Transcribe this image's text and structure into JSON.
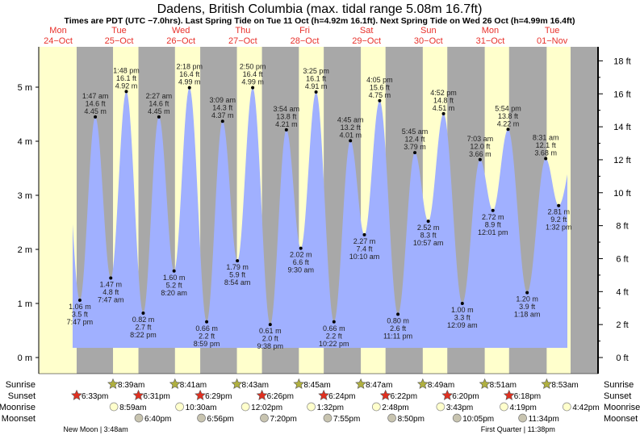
{
  "colors": {
    "day": "#ffffcc",
    "night": "#a8a8a8",
    "water": "#a0b0ff",
    "day_label": "#e8302a",
    "sunrise_star": "#b0b040",
    "sunset_star": "#e03020",
    "moonrise": "#ffffcc",
    "moonset": "#c8c4b0"
  },
  "chart_data": {
    "type": "area",
    "title": "Dadens, British Columbia (max. tidal range 5.08m 16.7ft)",
    "subtitle": "Times are PDT (UTC −7.0hrs). Last Spring Tide on Tue 11 Oct (h=4.92m 16.1ft). Next Spring Tide on Wed 26 Oct (h=4.99m 16.4ft)",
    "days": [
      {
        "name": "Mon",
        "date": "24−Oct"
      },
      {
        "name": "Tue",
        "date": "25−Oct"
      },
      {
        "name": "Wed",
        "date": "26−Oct"
      },
      {
        "name": "Thu",
        "date": "27−Oct"
      },
      {
        "name": "Fri",
        "date": "28−Oct"
      },
      {
        "name": "Sat",
        "date": "29−Oct"
      },
      {
        "name": "Sun",
        "date": "30−Oct"
      },
      {
        "name": "Mon",
        "date": "31−Oct"
      },
      {
        "name": "Tue",
        "date": "01−Nov"
      }
    ],
    "y_left": {
      "unit": "m",
      "range": [
        0,
        5
      ],
      "ticks": [
        "0 m",
        "1 m",
        "2 m",
        "3 m",
        "4 m",
        "5 m"
      ]
    },
    "y_right": {
      "unit": "ft",
      "ticks": [
        "0 ft",
        "2 ft",
        "4 ft",
        "6 ft",
        "8 ft",
        "10 ft",
        "12 ft",
        "14 ft",
        "16 ft",
        "18 ft"
      ]
    },
    "tides": [
      {
        "day": 0,
        "type": "low",
        "time": "7:47 pm",
        "m": "1.06 m",
        "ft": "3.5 ft",
        "h": 1.06
      },
      {
        "day": 1,
        "type": "high",
        "time": "1:47 am",
        "m": "4.45 m",
        "ft": "14.6 ft",
        "h": 4.45
      },
      {
        "day": 1,
        "type": "low",
        "time": "7:47 am",
        "m": "1.47 m",
        "ft": "4.8 ft",
        "h": 1.47
      },
      {
        "day": 1,
        "type": "high",
        "time": "1:48 pm",
        "m": "4.92 m",
        "ft": "16.1 ft",
        "h": 4.92
      },
      {
        "day": 1,
        "type": "low",
        "time": "8:22 pm",
        "m": "0.82 m",
        "ft": "2.7 ft",
        "h": 0.82
      },
      {
        "day": 2,
        "type": "high",
        "time": "2:27 am",
        "m": "4.45 m",
        "ft": "14.6 ft",
        "h": 4.45
      },
      {
        "day": 2,
        "type": "low",
        "time": "8:20 am",
        "m": "1.60 m",
        "ft": "5.2 ft",
        "h": 1.6
      },
      {
        "day": 2,
        "type": "high",
        "time": "2:18 pm",
        "m": "4.99 m",
        "ft": "16.4 ft",
        "h": 4.99
      },
      {
        "day": 2,
        "type": "low",
        "time": "8:59 pm",
        "m": "0.66 m",
        "ft": "2.2 ft",
        "h": 0.66
      },
      {
        "day": 3,
        "type": "high",
        "time": "3:09 am",
        "m": "4.37 m",
        "ft": "14.3 ft",
        "h": 4.37
      },
      {
        "day": 3,
        "type": "low",
        "time": "8:54 am",
        "m": "1.79 m",
        "ft": "5.9 ft",
        "h": 1.79
      },
      {
        "day": 3,
        "type": "high",
        "time": "2:50 pm",
        "m": "4.99 m",
        "ft": "16.4 ft",
        "h": 4.99
      },
      {
        "day": 3,
        "type": "low",
        "time": "9:38 pm",
        "m": "0.61 m",
        "ft": "2.0 ft",
        "h": 0.61
      },
      {
        "day": 4,
        "type": "high",
        "time": "3:54 am",
        "m": "4.21 m",
        "ft": "13.8 ft",
        "h": 4.21
      },
      {
        "day": 4,
        "type": "low",
        "time": "9:30 am",
        "m": "2.02 m",
        "ft": "6.6 ft",
        "h": 2.02
      },
      {
        "day": 4,
        "type": "high",
        "time": "3:25 pm",
        "m": "4.91 m",
        "ft": "16.1 ft",
        "h": 4.91
      },
      {
        "day": 4,
        "type": "low",
        "time": "10:22 pm",
        "m": "0.66 m",
        "ft": "2.2 ft",
        "h": 0.66
      },
      {
        "day": 5,
        "type": "high",
        "time": "4:45 am",
        "m": "4.01 m",
        "ft": "13.2 ft",
        "h": 4.01
      },
      {
        "day": 5,
        "type": "low",
        "time": "10:10 am",
        "m": "2.27 m",
        "ft": "7.4 ft",
        "h": 2.27
      },
      {
        "day": 5,
        "type": "high",
        "time": "4:05 pm",
        "m": "4.75 m",
        "ft": "15.6 ft",
        "h": 4.75
      },
      {
        "day": 5,
        "type": "low",
        "time": "11:11 pm",
        "m": "0.80 m",
        "ft": "2.6 ft",
        "h": 0.8
      },
      {
        "day": 6,
        "type": "high",
        "time": "5:45 am",
        "m": "3.79 m",
        "ft": "12.4 ft",
        "h": 3.79
      },
      {
        "day": 6,
        "type": "low",
        "time": "10:57 am",
        "m": "2.52 m",
        "ft": "8.3 ft",
        "h": 2.52
      },
      {
        "day": 6,
        "type": "high",
        "time": "4:52 pm",
        "m": "4.51 m",
        "ft": "14.8 ft",
        "h": 4.51
      },
      {
        "day": 7,
        "type": "low",
        "time": "12:09 am",
        "m": "1.00 m",
        "ft": "3.3 ft",
        "h": 1.0
      },
      {
        "day": 7,
        "type": "high",
        "time": "7:03 am",
        "m": "3.66 m",
        "ft": "12.0 ft",
        "h": 3.66
      },
      {
        "day": 7,
        "type": "low",
        "time": "12:01 pm",
        "m": "2.72 m",
        "ft": "8.9 ft",
        "h": 2.72
      },
      {
        "day": 7,
        "type": "high",
        "time": "5:54 pm",
        "m": "4.22 m",
        "ft": "13.8 ft",
        "h": 4.22
      },
      {
        "day": 8,
        "type": "low",
        "time": "1:18 am",
        "m": "1.20 m",
        "ft": "3.9 ft",
        "h": 1.2
      },
      {
        "day": 8,
        "type": "high",
        "time": "8:31 am",
        "m": "3.68 m",
        "ft": "12.1 ft",
        "h": 3.68
      },
      {
        "day": 8,
        "type": "low",
        "time": "1:32 pm",
        "m": "2.81 m",
        "ft": "9.2 ft",
        "h": 2.81
      }
    ],
    "rows": {
      "sunrise": "Sunrise",
      "sunset": "Sunset",
      "moonrise": "Moonrise",
      "moonset": "Moonset"
    },
    "sunrise": [
      {
        "day": 1,
        "time": "8:39am"
      },
      {
        "day": 2,
        "time": "8:41am"
      },
      {
        "day": 3,
        "time": "8:43am"
      },
      {
        "day": 4,
        "time": "8:45am"
      },
      {
        "day": 5,
        "time": "8:47am"
      },
      {
        "day": 6,
        "time": "8:49am"
      },
      {
        "day": 7,
        "time": "8:51am"
      },
      {
        "day": 8,
        "time": "8:53am"
      }
    ],
    "sunset": [
      {
        "day": 0,
        "time": "6:33pm"
      },
      {
        "day": 1,
        "time": "6:31pm"
      },
      {
        "day": 2,
        "time": "6:29pm"
      },
      {
        "day": 3,
        "time": "6:26pm"
      },
      {
        "day": 4,
        "time": "6:24pm"
      },
      {
        "day": 5,
        "time": "6:22pm"
      },
      {
        "day": 6,
        "time": "6:20pm"
      },
      {
        "day": 7,
        "time": "6:18pm"
      }
    ],
    "moonrise": [
      {
        "day": 1,
        "time": "8:59am"
      },
      {
        "day": 2,
        "time": "10:30am"
      },
      {
        "day": 3,
        "time": "12:02pm"
      },
      {
        "day": 4,
        "time": "1:32pm"
      },
      {
        "day": 5,
        "time": "2:48pm"
      },
      {
        "day": 6,
        "time": "3:43pm"
      },
      {
        "day": 7,
        "time": "4:19pm"
      },
      {
        "day": 8,
        "time": "4:42pm"
      }
    ],
    "moonset": [
      {
        "day": 1,
        "time": "6:40pm"
      },
      {
        "day": 2,
        "time": "6:56pm"
      },
      {
        "day": 3,
        "time": "7:20pm"
      },
      {
        "day": 4,
        "time": "7:55pm"
      },
      {
        "day": 5,
        "time": "8:50pm"
      },
      {
        "day": 6,
        "time": "10:05pm"
      },
      {
        "day": 7,
        "time": "11:34pm"
      }
    ],
    "moon_phases": [
      {
        "day": 1,
        "time": "3:48am",
        "label": "New Moon | 3:48am"
      },
      {
        "day": 7,
        "time": "11:38pm",
        "label": "First Quarter | 11:38pm"
      }
    ]
  }
}
